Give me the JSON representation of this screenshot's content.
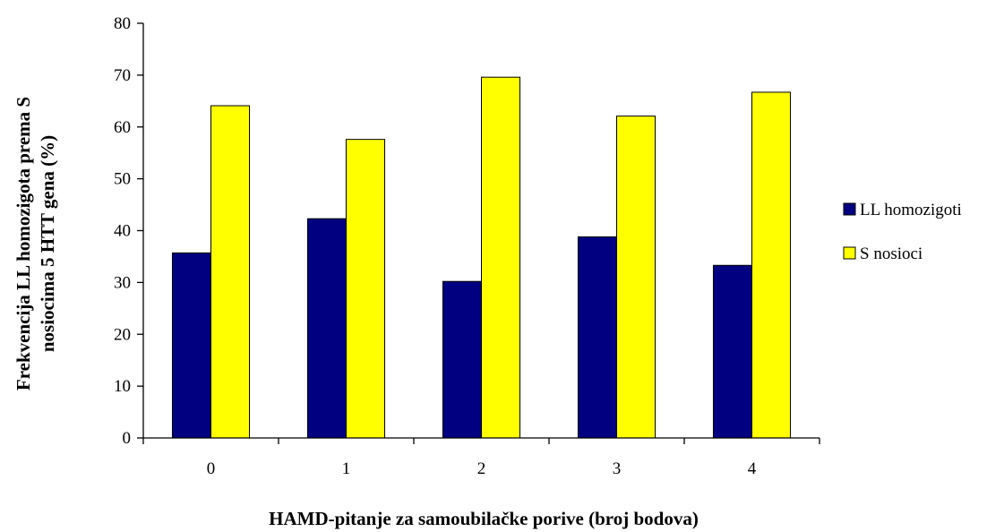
{
  "chart_data": {
    "type": "bar",
    "title": "",
    "xlabel": "HAMD-pitanje za samoubilačke porive (broj bodova)",
    "ylabel_lines": [
      "Frekvencija LL homozigota prema S",
      "nosiocima 5 HTT  gena (%)"
    ],
    "categories": [
      "0",
      "1",
      "2",
      "3",
      "4"
    ],
    "ylim": [
      0,
      80
    ],
    "yticks": [
      0,
      10,
      20,
      30,
      40,
      50,
      60,
      70,
      80
    ],
    "grid": false,
    "legend_position": "right",
    "series": [
      {
        "name": "LL homozigoti",
        "color": "#000080",
        "values": [
          35.7,
          42.3,
          30.2,
          38.8,
          33.3
        ]
      },
      {
        "name": "S nosioci",
        "color": "#FFFF00",
        "values": [
          64.1,
          57.6,
          69.6,
          62.1,
          66.7
        ]
      }
    ]
  }
}
